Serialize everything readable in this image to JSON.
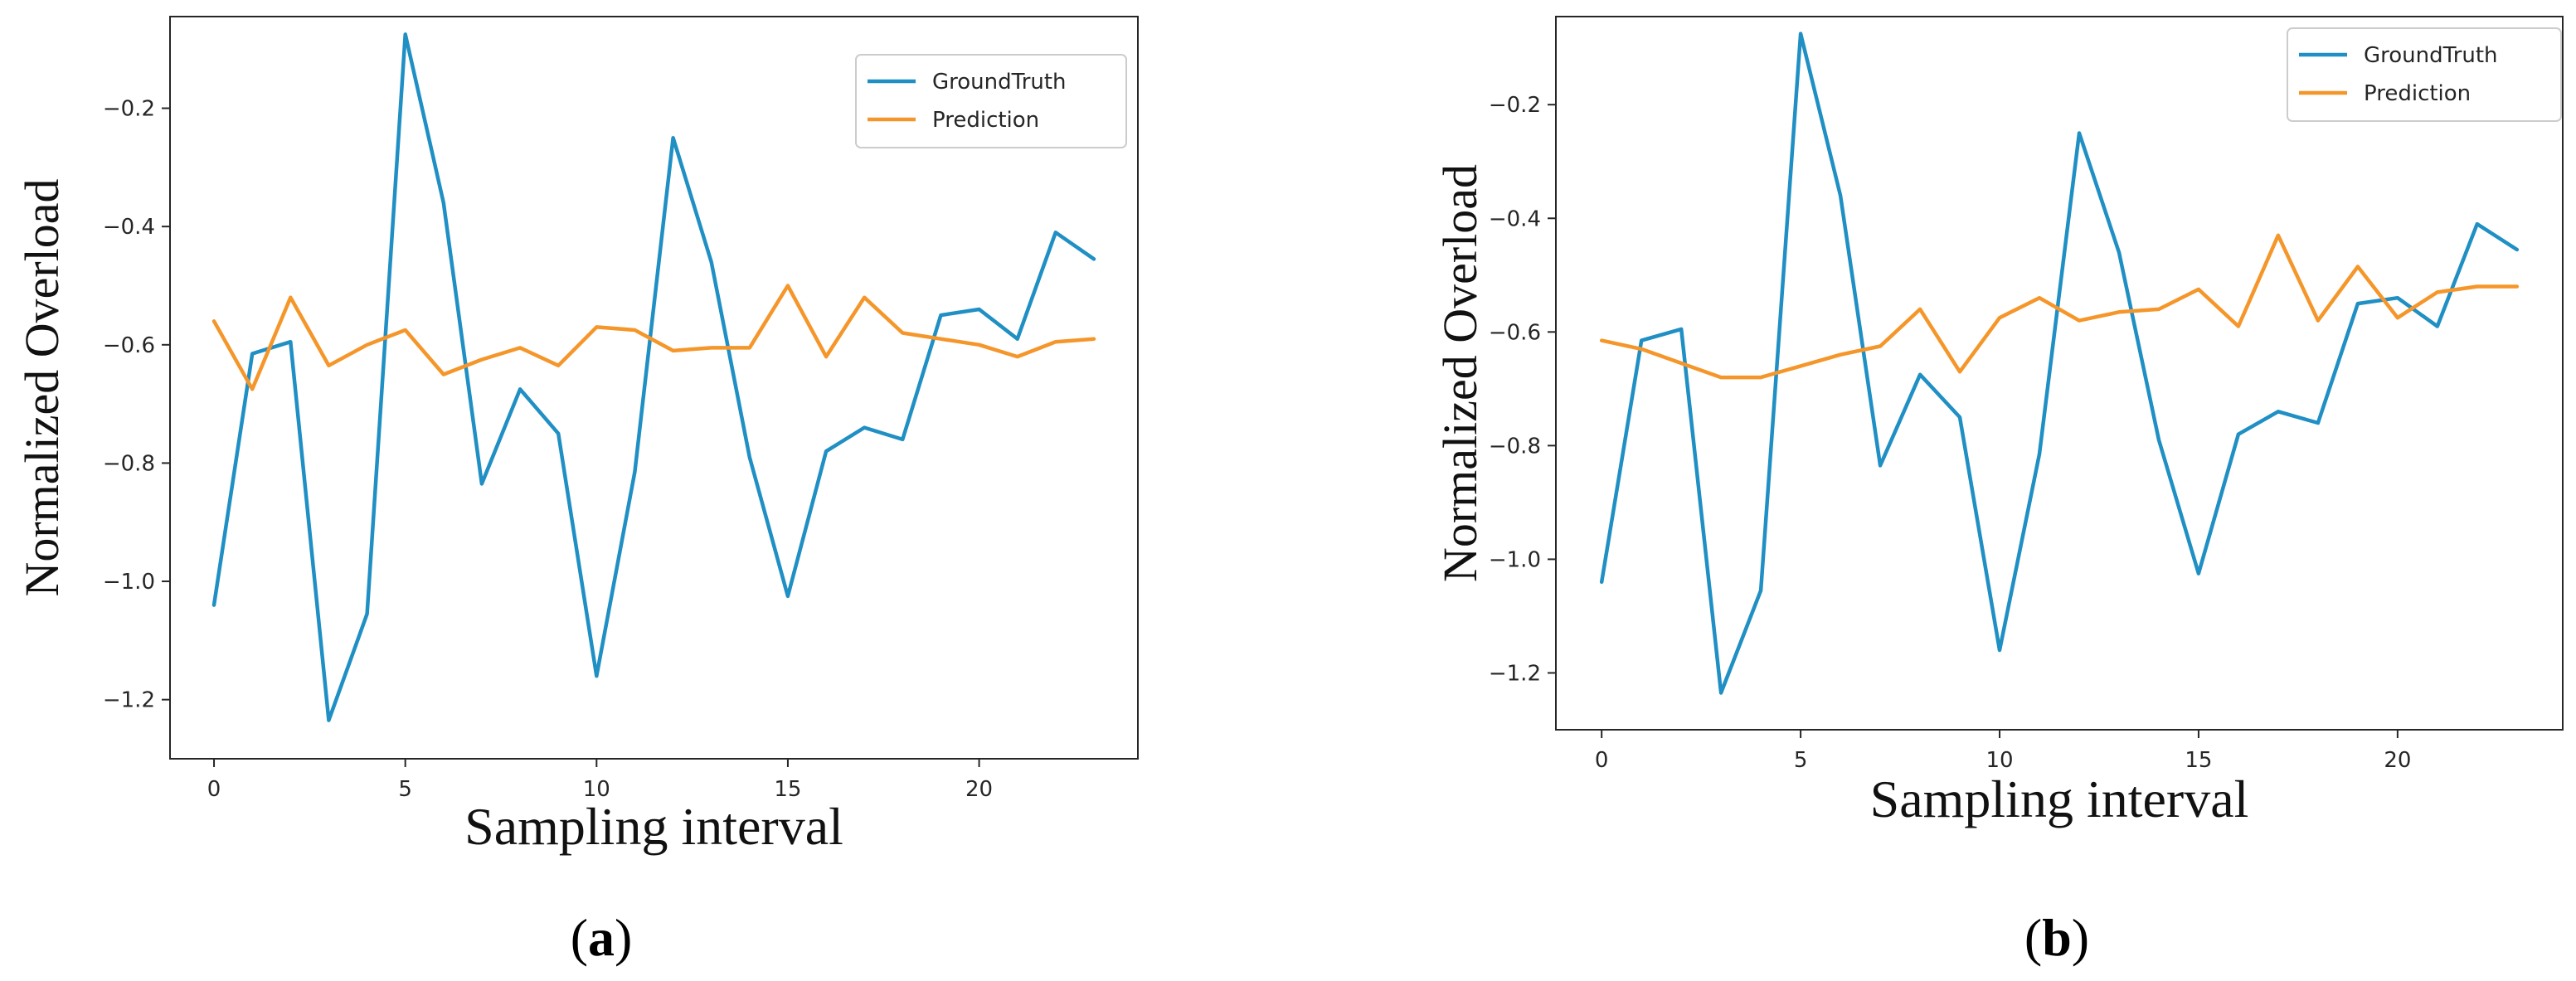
{
  "colors": {
    "ground_truth": "#1f8fc4",
    "prediction": "#f5962a",
    "axis": "#262626"
  },
  "chart_data": [
    {
      "panel_label": "a",
      "type": "line",
      "title": "",
      "xlabel": "Sampling interval",
      "ylabel": "Normalized Overload",
      "xlim": [
        -1.15,
        24.15
      ],
      "ylim": [
        -1.3,
        -0.045
      ],
      "xticks": [
        0,
        5,
        10,
        15,
        20
      ],
      "xtick_labels": [
        "0",
        "5",
        "10",
        "15",
        "20"
      ],
      "yticks": [
        -1.2,
        -1.0,
        -0.8,
        -0.6,
        -0.4,
        -0.2
      ],
      "ytick_labels": [
        "−1.2",
        "−1.0",
        "−0.8",
        "−0.6",
        "−0.4",
        "−0.2"
      ],
      "legend_position": "top-right",
      "x": [
        0,
        1,
        2,
        3,
        4,
        5,
        6,
        7,
        8,
        9,
        10,
        11,
        12,
        13,
        14,
        15,
        16,
        17,
        18,
        19,
        20,
        21,
        22,
        23
      ],
      "series": [
        {
          "name": "GroundTruth",
          "color_key": "ground_truth",
          "values": [
            -1.04,
            -0.615,
            -0.595,
            -1.235,
            -1.055,
            -0.075,
            -0.36,
            -0.835,
            -0.675,
            -0.75,
            -1.16,
            -0.815,
            -0.25,
            -0.46,
            -0.79,
            -1.025,
            -0.78,
            -0.74,
            -0.76,
            -0.55,
            -0.54,
            -0.59,
            -0.41,
            -0.455
          ]
        },
        {
          "name": "Prediction",
          "color_key": "prediction",
          "values": [
            -0.56,
            -0.675,
            -0.52,
            -0.635,
            -0.6,
            -0.575,
            -0.65,
            -0.625,
            -0.605,
            -0.635,
            -0.57,
            -0.575,
            -0.61,
            -0.605,
            -0.605,
            -0.5,
            -0.62,
            -0.52,
            -0.58,
            -0.59,
            -0.6,
            -0.62,
            -0.595,
            -0.59
          ]
        }
      ]
    },
    {
      "panel_label": "b",
      "type": "line",
      "title": "",
      "xlabel": "Sampling interval",
      "ylabel": "Normalized Overload",
      "xlim": [
        -1.15,
        24.15
      ],
      "ylim": [
        -1.3,
        -0.045
      ],
      "xticks": [
        0,
        5,
        10,
        15,
        20
      ],
      "xtick_labels": [
        "0",
        "5",
        "10",
        "15",
        "20"
      ],
      "yticks": [
        -1.2,
        -1.0,
        -0.8,
        -0.6,
        -0.4,
        -0.2
      ],
      "ytick_labels": [
        "−1.2",
        "−1.0",
        "−0.8",
        "−0.6",
        "−0.4",
        "−0.2"
      ],
      "legend_position": "top-right",
      "x": [
        0,
        1,
        2,
        3,
        4,
        5,
        6,
        7,
        8,
        9,
        10,
        11,
        12,
        13,
        14,
        15,
        16,
        17,
        18,
        19,
        20,
        21,
        22,
        23
      ],
      "series": [
        {
          "name": "GroundTruth",
          "color_key": "ground_truth",
          "values": [
            -1.04,
            -0.615,
            -0.595,
            -1.235,
            -1.055,
            -0.075,
            -0.36,
            -0.835,
            -0.675,
            -0.75,
            -1.16,
            -0.815,
            -0.25,
            -0.46,
            -0.79,
            -1.025,
            -0.78,
            -0.74,
            -0.76,
            -0.55,
            -0.54,
            -0.59,
            -0.41,
            -0.455
          ]
        },
        {
          "name": "Prediction",
          "color_key": "prediction",
          "values": [
            -0.615,
            -0.63,
            -0.655,
            -0.68,
            -0.68,
            -0.66,
            -0.64,
            -0.625,
            -0.56,
            -0.67,
            -0.575,
            -0.54,
            -0.58,
            -0.565,
            -0.56,
            -0.525,
            -0.59,
            -0.43,
            -0.58,
            -0.485,
            -0.575,
            -0.53,
            -0.52,
            -0.52
          ]
        }
      ]
    }
  ]
}
